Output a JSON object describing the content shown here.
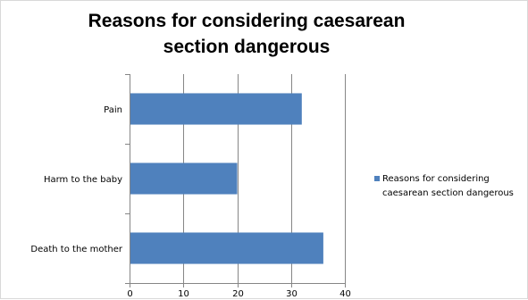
{
  "chart_data": {
    "type": "bar",
    "orientation": "horizontal",
    "title": "Reasons for considering caesarean section dangerous",
    "categories": [
      "Pain",
      "Harm to the baby",
      "Death to the mother"
    ],
    "series": [
      {
        "name": "Reasons for considering caesarean section dangerous",
        "values": [
          32,
          20,
          36
        ],
        "color": "#4f81bd"
      }
    ],
    "xlim": [
      0,
      40
    ],
    "xticks": [
      0,
      10,
      20,
      30,
      40
    ],
    "xlabel": "",
    "ylabel": "",
    "grid": "vertical",
    "legend_position": "right"
  }
}
